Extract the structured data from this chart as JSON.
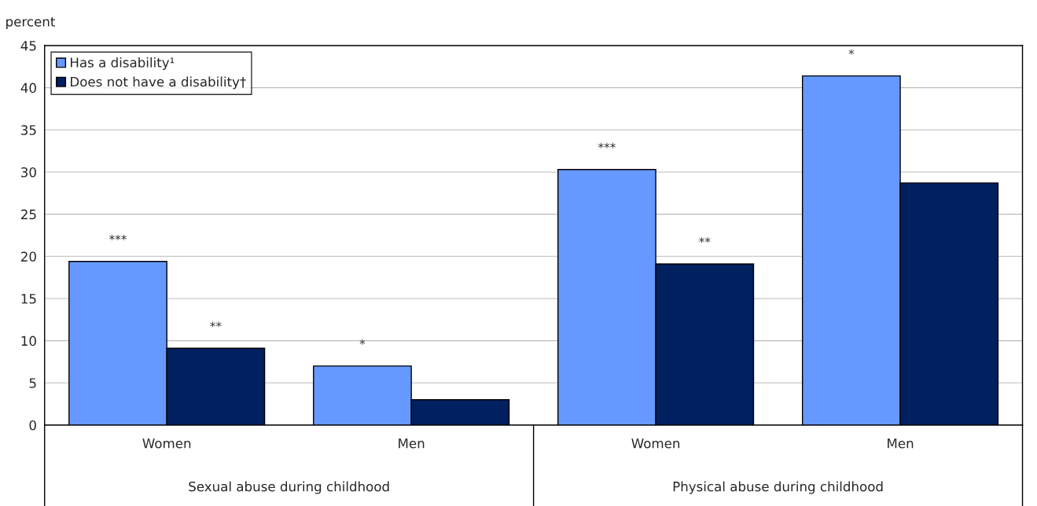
{
  "chart_data": {
    "type": "bar",
    "ylabel": "percent",
    "categories": [
      "Women",
      "Men",
      "Women",
      "Men"
    ],
    "series": [
      {
        "name": "Has a disability¹",
        "color": "#6699ff",
        "values": [
          19.4,
          7.0,
          30.3,
          41.4
        ],
        "value_labels": [
          "***",
          "*",
          "***",
          "*"
        ]
      },
      {
        "name": "Does not have a disability†",
        "color": "#002060",
        "values": [
          9.1,
          3.0,
          19.1,
          28.7
        ],
        "value_labels": [
          "**",
          null,
          "**",
          null
        ]
      }
    ],
    "annotations": [
      "Sexual abuse during childhood",
      "Physical abuse during childhood"
    ],
    "ylim": [
      0,
      45
    ],
    "yticks": [
      0,
      5,
      10,
      15,
      20,
      25,
      30,
      35,
      40,
      45
    ],
    "grid": "y",
    "legend": "top left"
  }
}
